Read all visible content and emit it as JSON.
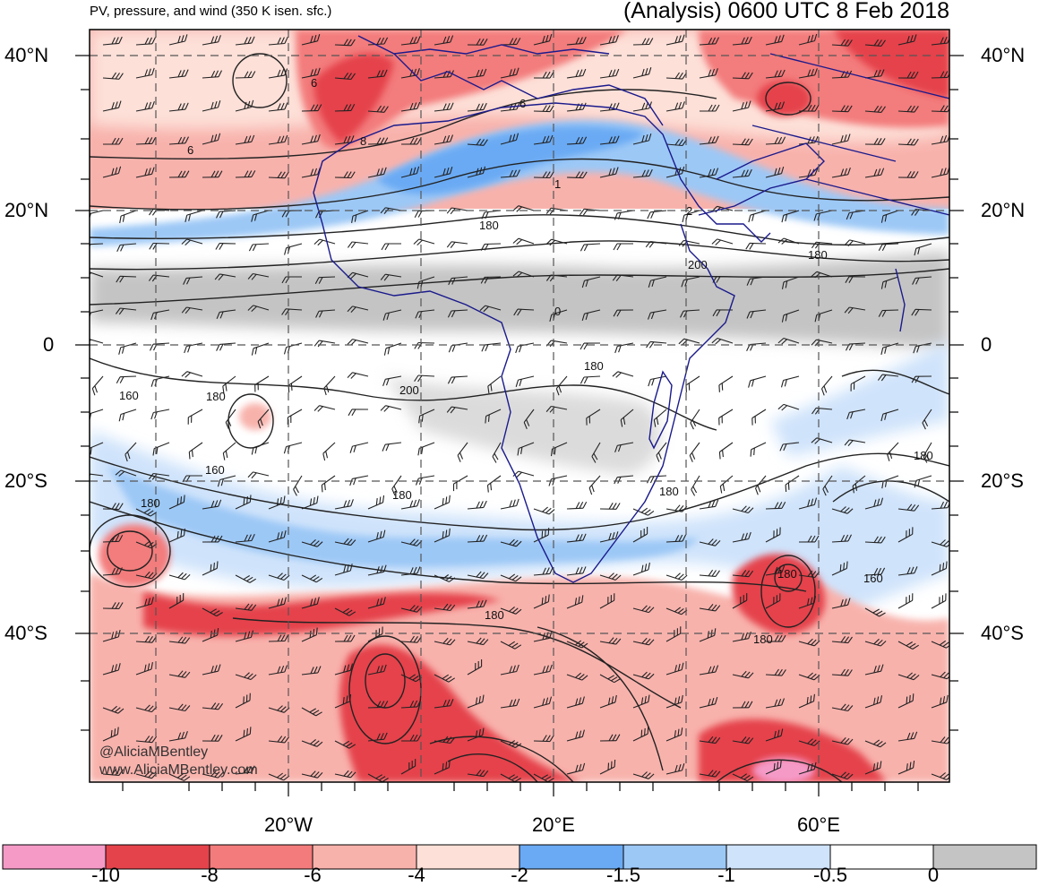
{
  "header": {
    "subtitle": "PV, pressure, and wind (350 K isen. sfc.)",
    "title": "(Analysis) 0600 UTC 8 Feb 2018"
  },
  "axes": {
    "lat_labels": [
      "40°N",
      "20°N",
      "0",
      "20°S",
      "40°S"
    ],
    "lon_labels": [
      "20°W",
      "20°E",
      "60°E"
    ]
  },
  "contour_labels": [
    "6",
    "6",
    "6",
    "8",
    "1",
    "2",
    "180",
    "180",
    "200",
    "0",
    "180",
    "180",
    "200",
    "180",
    "160",
    "160",
    "180",
    "180",
    "180",
    "180",
    "160",
    "180",
    "180"
  ],
  "credits": {
    "handle": "@AliciaMBentley",
    "website": "www.AliciaMBentley.com"
  },
  "colorbar": {
    "labels": [
      "-10",
      "-8",
      "-6",
      "-4",
      "-2",
      "-1.5",
      "-1",
      "-0.5",
      "0"
    ],
    "colors": [
      "#f59ac7",
      "#e5434b",
      "#f37b7b",
      "#f8b2ac",
      "#fde0d8",
      "#6aaaf4",
      "#9cc8f6",
      "#cfe3fb",
      "#ffffff",
      "#c4c4c4"
    ]
  },
  "palette": {
    "grid": "#555555",
    "border": "#1a1a8c",
    "contour": "#222222"
  }
}
